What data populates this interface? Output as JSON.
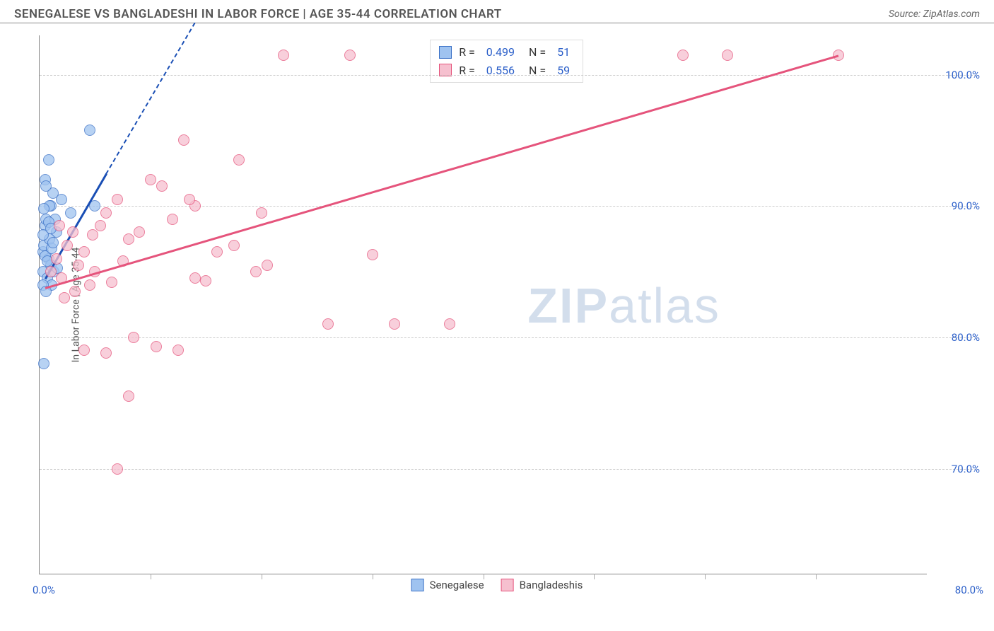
{
  "header": {
    "title": "SENEGALESE VS BANGLADESHI IN LABOR FORCE | AGE 35-44 CORRELATION CHART",
    "source": "Source: ZipAtlas.com"
  },
  "chart": {
    "type": "scatter",
    "y_axis_label": "In Labor Force | Age 35-44",
    "xlim": [
      0,
      80
    ],
    "ylim": [
      62,
      103
    ],
    "x_label_min": "0.0%",
    "x_label_max": "80.0%",
    "x_ticks_pct": [
      12.5,
      25,
      37.5,
      50,
      62.5,
      75,
      87.5
    ],
    "y_grid": [
      {
        "val": 100,
        "label": "100.0%"
      },
      {
        "val": 90,
        "label": "90.0%"
      },
      {
        "val": 80,
        "label": "80.0%"
      },
      {
        "val": 70,
        "label": "70.0%"
      }
    ],
    "background_color": "#ffffff",
    "grid_color": "#cccccc",
    "axis_color": "#888888",
    "series": [
      {
        "name": "Senegalese",
        "fill": "#9fc3f0",
        "stroke": "#3b71c6",
        "trend_color": "#1a4fb5",
        "R": "0.499",
        "N": "51",
        "trend": {
          "x1": 0.5,
          "y1": 84.5,
          "x2": 6,
          "y2": 92.5,
          "dash_x2": 14,
          "dash_y2": 104
        },
        "points": [
          {
            "x": 0.3,
            "y": 86.5
          },
          {
            "x": 0.5,
            "y": 88.5
          },
          {
            "x": 0.4,
            "y": 87.0
          },
          {
            "x": 0.8,
            "y": 86.0
          },
          {
            "x": 1.0,
            "y": 90.0
          },
          {
            "x": 1.2,
            "y": 91.0
          },
          {
            "x": 0.6,
            "y": 89.0
          },
          {
            "x": 1.5,
            "y": 88.0
          },
          {
            "x": 0.3,
            "y": 85.0
          },
          {
            "x": 0.7,
            "y": 84.5
          },
          {
            "x": 1.0,
            "y": 85.5
          },
          {
            "x": 1.3,
            "y": 85.0
          },
          {
            "x": 0.9,
            "y": 87.5
          },
          {
            "x": 2.0,
            "y": 90.5
          },
          {
            "x": 2.8,
            "y": 89.5
          },
          {
            "x": 1.1,
            "y": 84.0
          },
          {
            "x": 0.4,
            "y": 78.0
          },
          {
            "x": 0.5,
            "y": 92.0
          },
          {
            "x": 0.8,
            "y": 93.5
          },
          {
            "x": 4.5,
            "y": 95.8
          },
          {
            "x": 0.6,
            "y": 91.5
          },
          {
            "x": 0.9,
            "y": 90.0
          },
          {
            "x": 1.4,
            "y": 89.0
          },
          {
            "x": 0.3,
            "y": 87.8
          },
          {
            "x": 0.5,
            "y": 86.2
          },
          {
            "x": 1.1,
            "y": 86.8
          },
          {
            "x": 1.6,
            "y": 85.3
          },
          {
            "x": 0.7,
            "y": 85.8
          },
          {
            "x": 0.4,
            "y": 89.8
          },
          {
            "x": 0.8,
            "y": 88.8
          },
          {
            "x": 1.2,
            "y": 87.2
          },
          {
            "x": 0.3,
            "y": 84.0
          },
          {
            "x": 0.6,
            "y": 83.5
          },
          {
            "x": 5.0,
            "y": 90.0
          },
          {
            "x": 1.0,
            "y": 88.3
          }
        ]
      },
      {
        "name": "Bangladeshis",
        "fill": "#f6c0cf",
        "stroke": "#e5547c",
        "trend_color": "#e5547c",
        "R": "0.556",
        "N": "59",
        "trend": {
          "x1": 0.5,
          "y1": 83.8,
          "x2": 72,
          "y2": 101.5
        },
        "points": [
          {
            "x": 1.0,
            "y": 85.0
          },
          {
            "x": 1.5,
            "y": 86.0
          },
          {
            "x": 2.0,
            "y": 84.5
          },
          {
            "x": 2.5,
            "y": 87.0
          },
          {
            "x": 3.0,
            "y": 88.0
          },
          {
            "x": 3.5,
            "y": 85.5
          },
          {
            "x": 4.0,
            "y": 86.5
          },
          {
            "x": 4.5,
            "y": 84.0
          },
          {
            "x": 5.0,
            "y": 85.0
          },
          {
            "x": 5.5,
            "y": 88.5
          },
          {
            "x": 6.0,
            "y": 89.5
          },
          {
            "x": 6.5,
            "y": 84.2
          },
          {
            "x": 7.0,
            "y": 90.5
          },
          {
            "x": 7.5,
            "y": 85.8
          },
          {
            "x": 8.0,
            "y": 87.5
          },
          {
            "x": 4.0,
            "y": 79.0
          },
          {
            "x": 9.0,
            "y": 88.0
          },
          {
            "x": 10.0,
            "y": 92.0
          },
          {
            "x": 11.0,
            "y": 91.5
          },
          {
            "x": 6.0,
            "y": 78.8
          },
          {
            "x": 12.0,
            "y": 89.0
          },
          {
            "x": 8.5,
            "y": 80.0
          },
          {
            "x": 13.0,
            "y": 95.0
          },
          {
            "x": 10.5,
            "y": 79.3
          },
          {
            "x": 14.0,
            "y": 90.0
          },
          {
            "x": 15.0,
            "y": 84.3
          },
          {
            "x": 8.0,
            "y": 75.5
          },
          {
            "x": 7.0,
            "y": 70.0
          },
          {
            "x": 16.0,
            "y": 86.5
          },
          {
            "x": 17.5,
            "y": 87.0
          },
          {
            "x": 12.5,
            "y": 79.0
          },
          {
            "x": 18.0,
            "y": 93.5
          },
          {
            "x": 19.5,
            "y": 85.0
          },
          {
            "x": 14.0,
            "y": 84.5
          },
          {
            "x": 22.0,
            "y": 101.5
          },
          {
            "x": 20.0,
            "y": 89.5
          },
          {
            "x": 28.0,
            "y": 101.5
          },
          {
            "x": 26.0,
            "y": 81.0
          },
          {
            "x": 30.0,
            "y": 86.3
          },
          {
            "x": 32.0,
            "y": 81.0
          },
          {
            "x": 37.0,
            "y": 81.0
          },
          {
            "x": 58.0,
            "y": 101.5
          },
          {
            "x": 62.0,
            "y": 101.5
          },
          {
            "x": 72.0,
            "y": 101.5
          },
          {
            "x": 2.2,
            "y": 83.0
          },
          {
            "x": 3.2,
            "y": 83.5
          },
          {
            "x": 13.5,
            "y": 90.5
          },
          {
            "x": 1.8,
            "y": 88.5
          },
          {
            "x": 4.8,
            "y": 87.8
          },
          {
            "x": 20.5,
            "y": 85.5
          }
        ]
      }
    ],
    "legend_bottom": [
      {
        "label": "Senegalese",
        "fill": "#9fc3f0",
        "stroke": "#3b71c6"
      },
      {
        "label": "Bangladeshis",
        "fill": "#f6c0cf",
        "stroke": "#e5547c"
      }
    ],
    "watermark": {
      "bold": "ZIP",
      "rest": "atlas"
    }
  }
}
